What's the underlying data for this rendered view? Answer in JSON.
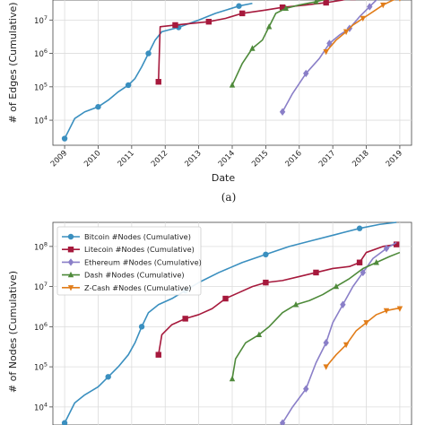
{
  "caption_a": "(a)",
  "chart_data": [
    {
      "type": "line",
      "panel": "a",
      "xlabel": "Date",
      "ylabel": "# of Edges (Cumulative)",
      "y_scale": "log",
      "x_ticks": [
        "2009",
        "2010",
        "2011",
        "2012",
        "2013",
        "2014",
        "2015",
        "2016",
        "2017",
        "2018",
        "2019"
      ],
      "y_ticks": [
        {
          "value": 10000,
          "base": "10",
          "exp": "4"
        },
        {
          "value": 100000,
          "base": "10",
          "exp": "5"
        },
        {
          "value": 1000000,
          "base": "10",
          "exp": "6"
        },
        {
          "value": 10000000,
          "base": "10",
          "exp": "7"
        }
      ],
      "xlim": [
        2008.65,
        2019.35
      ],
      "ylim_log10": [
        3.25,
        7.6
      ],
      "grid": true,
      "series": [
        {
          "color": "#3a8fbf",
          "marker": "circle",
          "points": [
            [
              2009.0,
              3.45
            ],
            [
              2009.3,
              4.05
            ],
            [
              2009.6,
              4.25
            ],
            [
              2010.0,
              4.4
            ],
            [
              2010.3,
              4.6
            ],
            [
              2010.6,
              4.85
            ],
            [
              2010.9,
              5.05
            ],
            [
              2011.1,
              5.25
            ],
            [
              2011.3,
              5.6
            ],
            [
              2011.5,
              6.0
            ],
            [
              2011.7,
              6.4
            ],
            [
              2011.9,
              6.65
            ],
            [
              2012.4,
              6.78
            ],
            [
              2013.0,
              7.0
            ],
            [
              2013.5,
              7.2
            ],
            [
              2014.2,
              7.42
            ],
            [
              2014.6,
              7.5
            ]
          ]
        },
        {
          "color": "#a6193c",
          "marker": "square",
          "points": [
            [
              2011.8,
              5.15
            ],
            [
              2011.85,
              6.8
            ],
            [
              2012.3,
              6.85
            ],
            [
              2012.8,
              6.9
            ],
            [
              2013.3,
              6.95
            ],
            [
              2013.8,
              7.05
            ],
            [
              2014.3,
              7.2
            ],
            [
              2015.0,
              7.3
            ],
            [
              2015.5,
              7.38
            ],
            [
              2016.2,
              7.45
            ],
            [
              2016.8,
              7.52
            ],
            [
              2017.3,
              7.6
            ],
            [
              2017.6,
              7.68
            ]
          ]
        },
        {
          "color": "#4e8a3a",
          "marker": "triangle-up",
          "points": [
            [
              2014.0,
              5.05
            ],
            [
              2014.3,
              5.7
            ],
            [
              2014.6,
              6.15
            ],
            [
              2014.9,
              6.4
            ],
            [
              2015.1,
              6.8
            ],
            [
              2015.3,
              7.2
            ],
            [
              2015.6,
              7.35
            ],
            [
              2016.0,
              7.45
            ],
            [
              2016.5,
              7.55
            ],
            [
              2016.9,
              7.65
            ]
          ]
        },
        {
          "color": "#8a7fc8",
          "marker": "diamond",
          "points": [
            [
              2015.5,
              4.25
            ],
            [
              2015.8,
              4.8
            ],
            [
              2016.2,
              5.4
            ],
            [
              2016.6,
              5.85
            ],
            [
              2016.9,
              6.3
            ],
            [
              2017.2,
              6.55
            ],
            [
              2017.5,
              6.75
            ],
            [
              2017.8,
              7.1
            ],
            [
              2018.1,
              7.4
            ],
            [
              2018.3,
              7.6
            ],
            [
              2018.5,
              7.75
            ]
          ]
        },
        {
          "color": "#e17d1a",
          "marker": "triangle-down",
          "points": [
            [
              2016.8,
              6.05
            ],
            [
              2017.1,
              6.4
            ],
            [
              2017.4,
              6.65
            ],
            [
              2017.6,
              6.85
            ],
            [
              2017.9,
              7.05
            ],
            [
              2018.2,
              7.25
            ],
            [
              2018.5,
              7.45
            ],
            [
              2018.8,
              7.6
            ],
            [
              2019.0,
              7.65
            ]
          ]
        }
      ]
    },
    {
      "type": "line",
      "panel": "b",
      "xlabel": "",
      "ylabel": "# of Nodes (Cumulative)",
      "y_scale": "log",
      "y_ticks": [
        {
          "value": 10000,
          "base": "10",
          "exp": "4"
        },
        {
          "value": 100000,
          "base": "10",
          "exp": "5"
        },
        {
          "value": 1000000,
          "base": "10",
          "exp": "6"
        },
        {
          "value": 10000000,
          "base": "10",
          "exp": "7"
        },
        {
          "value": 100000000,
          "base": "10",
          "exp": "8"
        }
      ],
      "xlim": [
        2008.65,
        2019.35
      ],
      "ylim_log10": [
        3.55,
        8.6
      ],
      "grid": true,
      "legend_position": "top-left",
      "series": [
        {
          "name": "Bitcoin #Nodes (Cumulative)",
          "color": "#3a8fbf",
          "marker": "circle",
          "points": [
            [
              2009.0,
              3.6
            ],
            [
              2009.3,
              4.1
            ],
            [
              2009.6,
              4.3
            ],
            [
              2010.0,
              4.5
            ],
            [
              2010.3,
              4.75
            ],
            [
              2010.6,
              5.0
            ],
            [
              2010.9,
              5.3
            ],
            [
              2011.1,
              5.6
            ],
            [
              2011.3,
              6.0
            ],
            [
              2011.5,
              6.35
            ],
            [
              2011.8,
              6.55
            ],
            [
              2012.2,
              6.7
            ],
            [
              2012.6,
              6.9
            ],
            [
              2013.0,
              7.1
            ],
            [
              2013.6,
              7.35
            ],
            [
              2014.3,
              7.6
            ],
            [
              2015.0,
              7.8
            ],
            [
              2015.7,
              8.0
            ],
            [
              2016.4,
              8.15
            ],
            [
              2017.1,
              8.3
            ],
            [
              2017.8,
              8.45
            ],
            [
              2018.4,
              8.55
            ],
            [
              2018.9,
              8.6
            ]
          ]
        },
        {
          "name": "Litecoin #Nodes (Cumulative)",
          "color": "#a6193c",
          "marker": "square",
          "points": [
            [
              2011.8,
              5.3
            ],
            [
              2011.9,
              5.8
            ],
            [
              2012.2,
              6.05
            ],
            [
              2012.6,
              6.2
            ],
            [
              2013.0,
              6.3
            ],
            [
              2013.4,
              6.45
            ],
            [
              2013.8,
              6.7
            ],
            [
              2014.2,
              6.85
            ],
            [
              2014.6,
              7.0
            ],
            [
              2015.0,
              7.1
            ],
            [
              2015.5,
              7.15
            ],
            [
              2016.0,
              7.25
            ],
            [
              2016.5,
              7.35
            ],
            [
              2017.0,
              7.45
            ],
            [
              2017.5,
              7.5
            ],
            [
              2017.8,
              7.6
            ],
            [
              2018.0,
              7.85
            ],
            [
              2018.5,
              8.0
            ],
            [
              2018.9,
              8.05
            ]
          ]
        },
        {
          "name": "Ethereum #Nodes (Cumulative)",
          "color": "#8a7fc8",
          "marker": "diamond",
          "points": [
            [
              2015.5,
              3.6
            ],
            [
              2015.8,
              4.0
            ],
            [
              2016.2,
              4.45
            ],
            [
              2016.5,
              5.1
            ],
            [
              2016.8,
              5.6
            ],
            [
              2017.0,
              6.1
            ],
            [
              2017.3,
              6.55
            ],
            [
              2017.6,
              7.0
            ],
            [
              2017.9,
              7.35
            ],
            [
              2018.2,
              7.7
            ],
            [
              2018.6,
              7.95
            ],
            [
              2018.9,
              8.1
            ]
          ]
        },
        {
          "name": "Dash #Nodes (Cumulative)",
          "color": "#4e8a3a",
          "marker": "triangle-up",
          "points": [
            [
              2014.0,
              4.7
            ],
            [
              2014.1,
              5.2
            ],
            [
              2014.4,
              5.6
            ],
            [
              2014.8,
              5.8
            ],
            [
              2015.1,
              6.0
            ],
            [
              2015.5,
              6.35
            ],
            [
              2015.9,
              6.55
            ],
            [
              2016.3,
              6.65
            ],
            [
              2016.7,
              6.8
            ],
            [
              2017.1,
              7.0
            ],
            [
              2017.5,
              7.2
            ],
            [
              2017.9,
              7.45
            ],
            [
              2018.3,
              7.6
            ],
            [
              2018.7,
              7.75
            ],
            [
              2019.0,
              7.85
            ]
          ]
        },
        {
          "name": "Z-Cash #Nodes (Cumulative)",
          "color": "#e17d1a",
          "marker": "triangle-down",
          "points": [
            [
              2016.8,
              5.0
            ],
            [
              2017.1,
              5.3
            ],
            [
              2017.4,
              5.55
            ],
            [
              2017.7,
              5.9
            ],
            [
              2018.0,
              6.1
            ],
            [
              2018.3,
              6.3
            ],
            [
              2018.6,
              6.4
            ],
            [
              2018.9,
              6.45
            ],
            [
              2019.0,
              6.45
            ]
          ]
        }
      ]
    }
  ]
}
